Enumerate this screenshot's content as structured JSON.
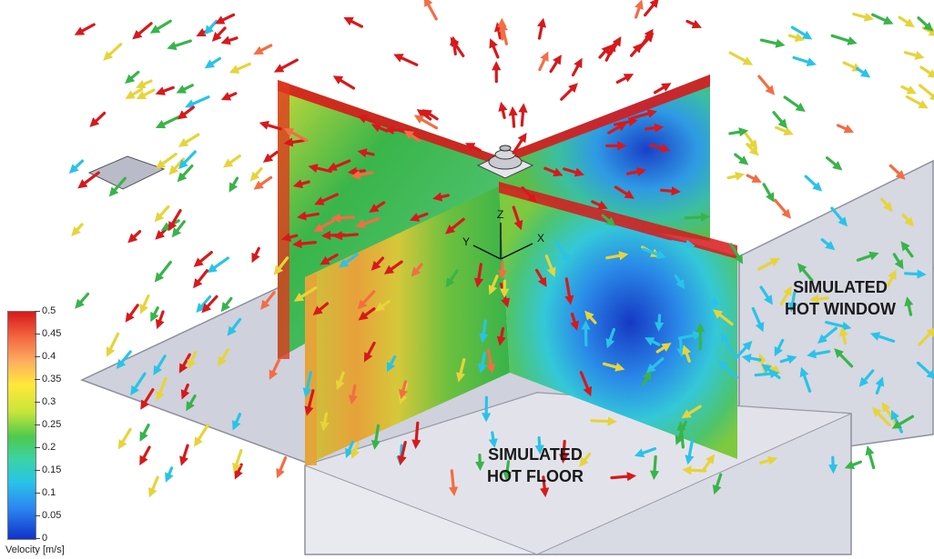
{
  "labels": {
    "window": [
      "SIMULATED",
      "HOT WINDOW"
    ],
    "floor": [
      "SIMULATED",
      "HOT FLOOR"
    ]
  },
  "axes": {
    "x": "X",
    "y": "Y",
    "z": "Z"
  },
  "legend": {
    "title": "Velocity [m/s]",
    "ticks": [
      "0.5",
      "0.45",
      "0.4",
      "0.35",
      "0.3",
      "0.25",
      "0.2",
      "0.15",
      "0.1",
      "0.05",
      "0"
    ],
    "min": 0,
    "max": 0.5
  },
  "colors": {
    "red": "#d7191c",
    "orange": "#f46d43",
    "yellow": "#e6d43a",
    "green": "#38b44a",
    "cyan": "#29c3e8",
    "blue": "#1f4fd0",
    "floor": "#cfd1dc"
  }
}
